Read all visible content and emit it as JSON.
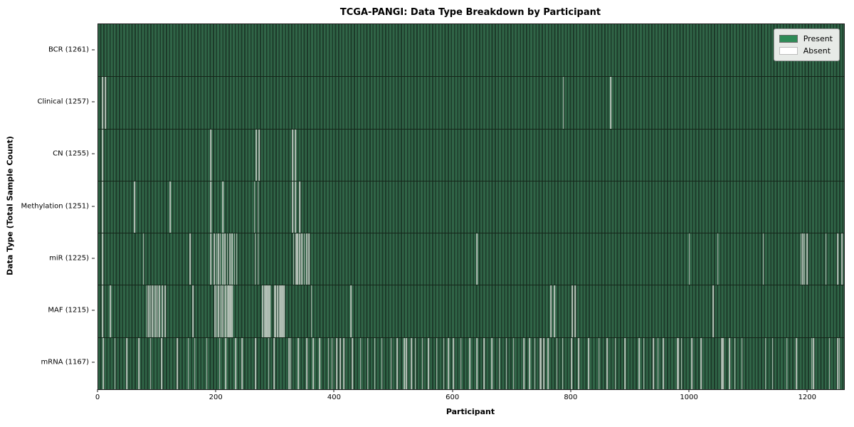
{
  "title": "TCGA-PANGI: Data Type Breakdown by Participant",
  "axes": {
    "xlabel": "Participant",
    "ylabel": "Data Type (Total Sample Count)"
  },
  "legend": {
    "present_label": "Present",
    "absent_label": "Absent"
  },
  "colors": {
    "present": "#2e8b57",
    "present_cell_light": "#306547",
    "present_cell_dark": "#1d3a2a",
    "absent": "#ffffff",
    "absent_stripe": "#b9c4bb",
    "legend_background": "#e7eae7",
    "axis": "#1a1a1a"
  },
  "chart_data": {
    "type": "heatmap",
    "title": "TCGA-PANGI: Data Type Breakdown by Participant",
    "xlabel": "Participant",
    "ylabel": "Data Type (Total Sample Count)",
    "legend": [
      "Present",
      "Absent"
    ],
    "legend_position": "upper right",
    "grid": false,
    "n_participants": 1261,
    "x_ticks": [
      0,
      200,
      400,
      600,
      800,
      1000,
      1200
    ],
    "rows": [
      {
        "label": "BCR",
        "display": "BCR (1261)",
        "total_sample_count": 1261,
        "absent_count": 0,
        "absent_participants": []
      },
      {
        "label": "Clinical",
        "display": "Clinical (1257)",
        "total_sample_count": 1257,
        "absent_count": 4,
        "absent_participants": [
          7,
          12,
          786,
          866
        ]
      },
      {
        "label": "CN",
        "display": "CN (1255)",
        "total_sample_count": 1255,
        "absent_count": 6,
        "absent_participants": [
          7,
          190,
          267,
          272,
          328,
          333
        ]
      },
      {
        "label": "Methylation",
        "display": "Methylation (1251)",
        "total_sample_count": 1251,
        "absent_count": 10,
        "absent_participants": [
          7,
          61,
          121,
          190,
          210,
          264,
          270,
          328,
          333,
          340
        ]
      },
      {
        "label": "miR",
        "display": "miR (1225)",
        "total_sample_count": 1225,
        "absent_count": 36,
        "absent_participants": [
          7,
          76,
          155,
          190,
          196,
          200,
          203,
          206,
          210,
          214,
          218,
          222,
          226,
          230,
          234,
          265,
          270,
          330,
          334,
          337,
          340,
          344,
          348,
          352,
          356,
          640,
          999,
          1047,
          1124,
          1188,
          1191,
          1194,
          1198,
          1230,
          1250,
          1257
        ]
      },
      {
        "label": "MAF",
        "display": "MAF (1215)",
        "total_sample_count": 1215,
        "absent_count": 46,
        "absent_participants": [
          7,
          20,
          82,
          85,
          88,
          91,
          94,
          97,
          100,
          103,
          108,
          113,
          160,
          197,
          200,
          203,
          206,
          209,
          212,
          215,
          218,
          220,
          222,
          224,
          226,
          278,
          281,
          284,
          286,
          288,
          290,
          298,
          300,
          303,
          306,
          308,
          310,
          312,
          314,
          360,
          427,
          765,
          771,
          801,
          806,
          1039
        ]
      },
      {
        "label": "mRNA",
        "display": "mRNA (1167)",
        "total_sample_count": 1167,
        "absent_count": 94,
        "absent_participants": [
          8,
          28,
          48,
          68,
          88,
          107,
          133,
          152,
          163,
          183,
          205,
          215,
          232,
          243,
          266,
          288,
          297,
          322,
          325,
          338,
          352,
          363,
          374,
          389,
          395,
          403,
          409,
          415,
          429,
          443,
          455,
          467,
          479,
          495,
          505,
          517,
          521,
          529,
          536,
          548,
          558,
          572,
          584,
          592,
          600,
          613,
          628,
          640,
          652,
          665,
          678,
          690,
          702,
          719,
          729,
          738,
          747,
          749,
          753,
          760,
          775,
          785,
          800,
          812,
          829,
          846,
          860,
          874,
          890,
          914,
          922,
          938,
          946,
          955,
          979,
          981,
          986,
          1003,
          1019,
          1053,
          1055,
          1057,
          1067,
          1076,
          1088,
          1128,
          1140,
          1164,
          1180,
          1206,
          1209,
          1236,
          1250,
          1253
        ]
      }
    ]
  }
}
